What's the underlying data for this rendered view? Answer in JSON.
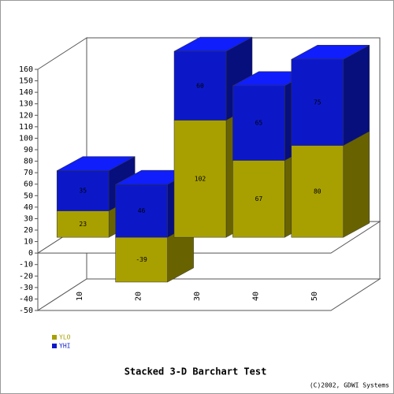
{
  "chart_data": {
    "type": "bar3d_stacked",
    "title": "Stacked 3-D Barchart Test",
    "credit": "(C)2002, GDWI Systems",
    "categories": [
      "10",
      "20",
      "30",
      "40",
      "50"
    ],
    "series": [
      {
        "name": "YLO",
        "color": "#a8a000",
        "values": [
          23,
          -39,
          102,
          67,
          80
        ]
      },
      {
        "name": "YHI",
        "color": "#0c18c8",
        "values": [
          35,
          46,
          60,
          65,
          75
        ]
      }
    ],
    "ylim": [
      -50,
      160
    ],
    "yticks": [
      -50,
      -40,
      -30,
      -20,
      -10,
      0,
      10,
      20,
      30,
      40,
      50,
      60,
      70,
      80,
      90,
      100,
      110,
      120,
      130,
      140,
      150,
      160
    ],
    "legend": "bottom-left"
  }
}
